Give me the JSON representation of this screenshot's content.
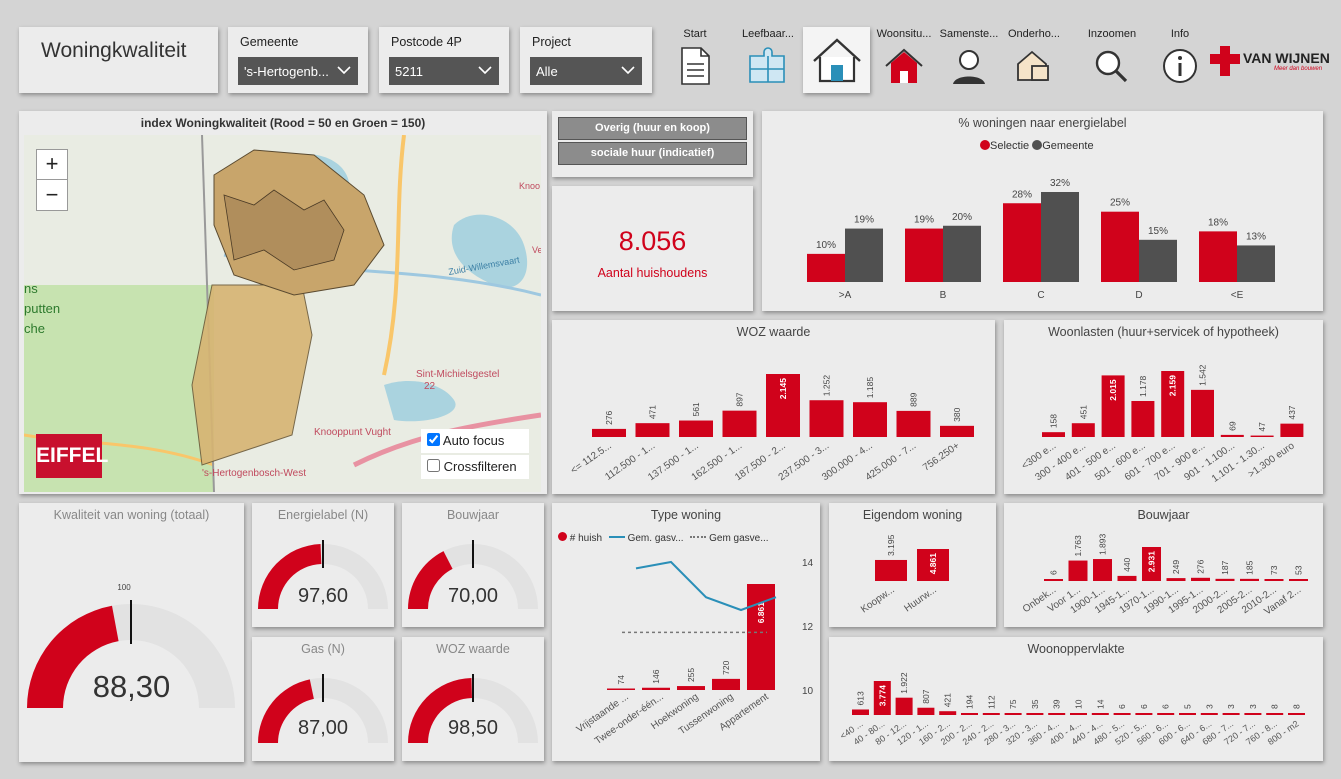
{
  "header": {
    "title": "Woningkwaliteit"
  },
  "filters": [
    {
      "label": "Gemeente",
      "value": "'s-Hertogenb..."
    },
    {
      "label": "Postcode 4P",
      "value": "5211"
    },
    {
      "label": "Project",
      "value": "Alle"
    }
  ],
  "nav": [
    "Start",
    "Leefbaar...",
    "",
    "Woonsitu...",
    "Samenste...",
    "Onderho...",
    "Inzoomen",
    "Info"
  ],
  "logo": {
    "brand": "VAN WIJNEN",
    "tagline": "Meer dan bouwen"
  },
  "map": {
    "title": "index Woningkwaliteit (Rood = 50 en Groen = 150)",
    "zoom_in": "+",
    "zoom_out": "−",
    "auto_focus": "Auto focus",
    "crossfilter": "Crossfilteren",
    "eiffel": "EIFFEL",
    "places": [
      "Sint-Michielsgestel",
      "22",
      "Knooppunt Vught",
      "'s-Hertogenbosch-West",
      "Zuid-Willemsvaart",
      "Knoo",
      "Ve",
      "ns",
      "putten",
      "che"
    ]
  },
  "segments": {
    "a": "Overig (huur en koop)",
    "b": "sociale huur (indicatief)"
  },
  "kpi": {
    "value": "8.056",
    "label": "Aantal huishoudens"
  },
  "energy": {
    "title": "% woningen naar energielabel",
    "legend": [
      "Selectie",
      "Gemeente"
    ],
    "cats": [
      ">A",
      "B",
      "C",
      "D",
      "<E"
    ],
    "sel": [
      10,
      19,
      28,
      25,
      18
    ],
    "gem": [
      19,
      20,
      32,
      15,
      13
    ],
    "sel_lbl": [
      "10%",
      "19%",
      "28%",
      "25%",
      "18%"
    ],
    "gem_lbl": [
      "19%",
      "20%",
      "32%",
      "15%",
      "13%"
    ]
  },
  "woz": {
    "title": "WOZ waarde",
    "cats": [
      "<= 112.5...",
      "112.500 - 1...",
      "137.500 - 1...",
      "162.500 - 1...",
      "187.500 - 2...",
      "237.500 - 3...",
      "300.000 - 4...",
      "425.000 - 7...",
      "756.250+"
    ],
    "values": [
      276,
      471,
      561,
      897,
      2145,
      1252,
      1185,
      889,
      380
    ],
    "labels": [
      "276",
      "471",
      "561",
      "897",
      "2.145",
      "1.252",
      "1.185",
      "889",
      "380"
    ],
    "hl": 4
  },
  "lasten": {
    "title": "Woonlasten (huur+servicek of hypotheek)",
    "cats": [
      "<300 e...",
      "300 - 400 e...",
      "401 - 500 e...",
      "501 - 600 e...",
      "601 - 700 e...",
      "701 - 900 e...",
      "901 - 1.100...",
      "1.101 - 1.30...",
      ">1.300 euro"
    ],
    "values": [
      158,
      451,
      2015,
      1178,
      2159,
      1542,
      69,
      47,
      437
    ],
    "labels": [
      "158",
      "451",
      "2.015",
      "1.178",
      "2.159",
      "1.542",
      "69",
      "47",
      "437"
    ],
    "hl": [
      2,
      4
    ]
  },
  "gauges": [
    {
      "title": "Kwaliteit van woning (totaal)",
      "value": "88,30",
      "v": 88.3,
      "target": "100"
    },
    {
      "title": "Energielabel (N)",
      "value": "97,60",
      "v": 97.6
    },
    {
      "title": "Bouwjaar",
      "value": "70,00",
      "v": 70
    },
    {
      "title": "Gas (N)",
      "value": "87,00",
      "v": 87
    },
    {
      "title": "WOZ waarde",
      "value": "98,50",
      "v": 98.5
    }
  ],
  "type": {
    "title": "Type woning",
    "legend": [
      "# huish",
      "Gem. gasv...",
      "Gem gasve..."
    ],
    "cats": [
      "Vrijstaande ...",
      "Twee-onder-één...",
      "Hoekwoning",
      "Tussenwoning",
      "Appartement"
    ],
    "values": [
      74,
      146,
      255,
      720,
      6861
    ],
    "labels": [
      "74",
      "146",
      "255",
      "720",
      "6.861"
    ],
    "line": [
      13.8,
      14.0,
      12.9,
      12.5,
      12.9
    ],
    "avg": 11.8,
    "yticks": [
      "14",
      "12",
      "10"
    ]
  },
  "eigendom": {
    "title": "Eigendom woning",
    "cats": [
      "Koopw...",
      "Huurw..."
    ],
    "values": [
      3195,
      4861
    ],
    "labels": [
      "3.195",
      "4.861"
    ]
  },
  "bouwjaar": {
    "title": "Bouwjaar",
    "cats": [
      "Onbek...",
      "Voor 1...",
      "1900-1...",
      "1945-1...",
      "1970-1...",
      "1990-1...",
      "1995-1...",
      "2000-2...",
      "2005-2...",
      "2010-2...",
      "Vanaf 2..."
    ],
    "values": [
      6,
      1763,
      1893,
      440,
      2931,
      249,
      276,
      187,
      185,
      73,
      53
    ],
    "labels": [
      "6",
      "1.763",
      "1.893",
      "440",
      "2.931",
      "249",
      "276",
      "187",
      "185",
      "73",
      "53"
    ],
    "hl": 4
  },
  "opp": {
    "title": "Woonoppervlakte",
    "cats": [
      "<40 ...",
      "40 - 80...",
      "80 - 12...",
      "120 - 1...",
      "160 - 2...",
      "200 - 2...",
      "240 - 2...",
      "280 - 3...",
      "320 - 3...",
      "360 - 4...",
      "400 - 4...",
      "440 - 4...",
      "480 - 5...",
      "520 - 5...",
      "560 - 6...",
      "600 - 6...",
      "640 - 6...",
      "680 - 7...",
      "720 - 7...",
      "760 - 8...",
      "800 - m2"
    ],
    "values": [
      613,
      3774,
      1922,
      807,
      421,
      194,
      112,
      75,
      35,
      39,
      10,
      14,
      6,
      6,
      6,
      5,
      3,
      3,
      3,
      8,
      8
    ],
    "labels": [
      "613",
      "3.774",
      "1.922",
      "807",
      "421",
      "194",
      "112",
      "75",
      "35",
      "39",
      "10",
      "14",
      "6",
      "6",
      "6",
      "5",
      "3",
      "3",
      "3",
      "8",
      "8"
    ],
    "hl": 1
  },
  "colors": {
    "red": "#d0021b",
    "grey": "#505050",
    "line": "#2a8fb8"
  }
}
